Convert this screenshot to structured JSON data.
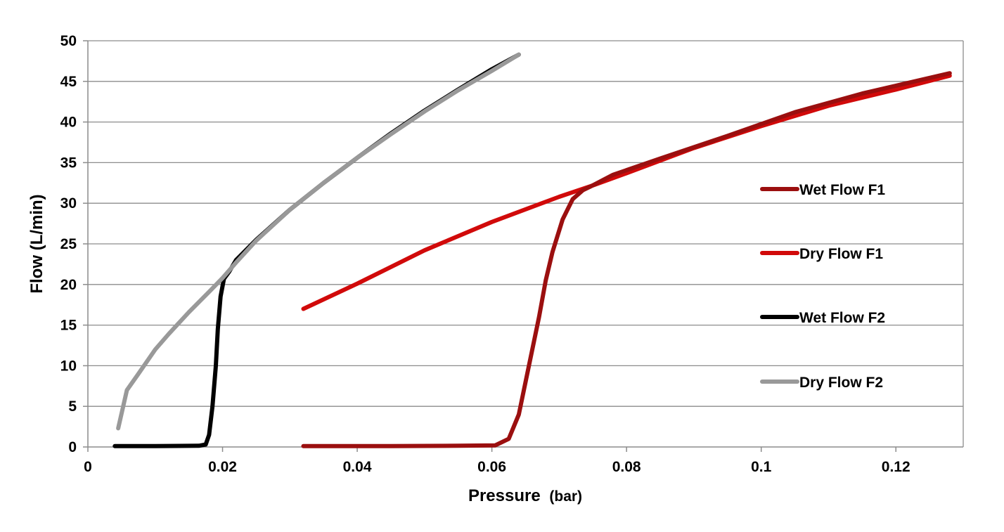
{
  "chart_data": {
    "type": "line",
    "title": "",
    "xlabel": "Pressure",
    "xlabel_unit": "(bar)",
    "ylabel": "Flow (L/min)",
    "xlim": [
      0,
      0.13
    ],
    "ylim": [
      0,
      50
    ],
    "x_ticks": [
      0,
      0.02,
      0.04,
      0.06,
      0.08,
      0.1,
      0.12
    ],
    "x_tick_labels": [
      "0",
      "0.02",
      "0.04",
      "0.06",
      "0.08",
      "0.1",
      "0.12"
    ],
    "y_ticks": [
      0,
      5,
      10,
      15,
      20,
      25,
      30,
      35,
      40,
      45,
      50
    ],
    "y_tick_labels": [
      "0",
      "5",
      "10",
      "15",
      "20",
      "25",
      "30",
      "35",
      "40",
      "45",
      "50"
    ],
    "grid": "horizontal",
    "legend_position": "right",
    "series": [
      {
        "name": "Wet Flow F1",
        "color": "#9b0f0f",
        "points": [
          [
            0.032,
            0.1
          ],
          [
            0.045,
            0.1
          ],
          [
            0.055,
            0.15
          ],
          [
            0.0605,
            0.2
          ],
          [
            0.0625,
            1
          ],
          [
            0.064,
            4
          ],
          [
            0.0655,
            10
          ],
          [
            0.067,
            16
          ],
          [
            0.068,
            20.5
          ],
          [
            0.069,
            24
          ],
          [
            0.0705,
            28
          ],
          [
            0.072,
            30.5
          ],
          [
            0.0735,
            31.6
          ],
          [
            0.0745,
            32
          ],
          [
            0.078,
            33.5
          ],
          [
            0.085,
            35.5
          ],
          [
            0.095,
            38.3
          ],
          [
            0.105,
            41.2
          ],
          [
            0.115,
            43.5
          ],
          [
            0.128,
            46
          ]
        ]
      },
      {
        "name": "Dry Flow F1",
        "color": "#d10a0a",
        "points": [
          [
            0.032,
            17
          ],
          [
            0.04,
            20.1
          ],
          [
            0.05,
            24.2
          ],
          [
            0.06,
            27.7
          ],
          [
            0.07,
            30.8
          ],
          [
            0.075,
            32.2
          ],
          [
            0.08,
            33.7
          ],
          [
            0.09,
            36.8
          ],
          [
            0.1,
            39.5
          ],
          [
            0.11,
            42
          ],
          [
            0.12,
            44
          ],
          [
            0.128,
            45.7
          ]
        ]
      },
      {
        "name": "Wet Flow F2",
        "color": "#000000",
        "points": [
          [
            0.004,
            0.1
          ],
          [
            0.01,
            0.1
          ],
          [
            0.0165,
            0.15
          ],
          [
            0.0175,
            0.3
          ],
          [
            0.018,
            1.5
          ],
          [
            0.0185,
            5
          ],
          [
            0.019,
            10
          ],
          [
            0.0193,
            14.5
          ],
          [
            0.0197,
            18.5
          ],
          [
            0.0202,
            20.7
          ],
          [
            0.021,
            21.6
          ],
          [
            0.022,
            23
          ],
          [
            0.025,
            25.5
          ],
          [
            0.03,
            29.2
          ],
          [
            0.035,
            32.5
          ],
          [
            0.04,
            35.6
          ],
          [
            0.045,
            38.6
          ],
          [
            0.05,
            41.4
          ],
          [
            0.055,
            44
          ],
          [
            0.06,
            46.5
          ],
          [
            0.064,
            48.3
          ]
        ]
      },
      {
        "name": "Dry Flow F2",
        "color": "#999999",
        "points": [
          [
            0.0045,
            2.3
          ],
          [
            0.0058,
            7
          ],
          [
            0.0075,
            9
          ],
          [
            0.01,
            12
          ],
          [
            0.012,
            13.9
          ],
          [
            0.015,
            16.6
          ],
          [
            0.018,
            19.1
          ],
          [
            0.02,
            20.8
          ],
          [
            0.022,
            22.7
          ],
          [
            0.025,
            25.4
          ],
          [
            0.03,
            29.2
          ],
          [
            0.035,
            32.5
          ],
          [
            0.04,
            35.6
          ],
          [
            0.045,
            38.5
          ],
          [
            0.05,
            41.3
          ],
          [
            0.055,
            43.9
          ],
          [
            0.06,
            46.3
          ],
          [
            0.064,
            48.3
          ]
        ]
      }
    ]
  }
}
